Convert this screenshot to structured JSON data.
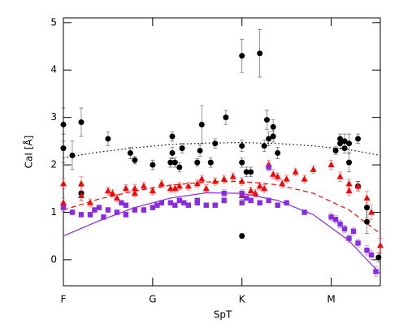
{
  "chart_data": {
    "type": "scatter",
    "xlabel": "SpT",
    "ylabel": "CaI [Å]",
    "xlim": [
      0,
      35.5
    ],
    "ylim": [
      -0.55,
      5.1
    ],
    "xticks": [
      {
        "value": 0,
        "label": "F"
      },
      {
        "value": 10,
        "label": "G"
      },
      {
        "value": 20,
        "label": "K"
      },
      {
        "value": 30,
        "label": "M"
      }
    ],
    "yticks": [
      0,
      1,
      2,
      3,
      4,
      5
    ],
    "series": [
      {
        "marker": "circle",
        "color": "#000000",
        "x": [
          0,
          0,
          1,
          2,
          2,
          5,
          7.5,
          8,
          10,
          12,
          12.2,
          12.2,
          12.5,
          13,
          13.3,
          15,
          15.3,
          15.5,
          16.5,
          17,
          18.2,
          20,
          20,
          20,
          20,
          20.5,
          21,
          22,
          22.5,
          22.8,
          23,
          23.5,
          23.5,
          24,
          30.5,
          31,
          31,
          31.5,
          31.5,
          32,
          32,
          33,
          33,
          34,
          34,
          35.3
        ],
        "values": [
          2.85,
          2.35,
          2.2,
          2.9,
          1.4,
          2.55,
          2.25,
          2.1,
          2.0,
          2.05,
          2.6,
          2.25,
          2.05,
          1.95,
          2.35,
          2.05,
          2.3,
          2.85,
          2.05,
          2.45,
          3.0,
          4.3,
          2.4,
          2.05,
          0.5,
          1.85,
          1.85,
          4.35,
          2.4,
          2.95,
          2.55,
          2.8,
          2.6,
          2.25,
          2.3,
          2.55,
          2.45,
          2.5,
          2.35,
          2.05,
          2.45,
          2.55,
          1.55,
          0.8,
          1.1,
          0.05
        ],
        "errors": [
          0.35,
          0.3,
          0.3,
          0.3,
          0.15,
          0.15,
          0.12,
          0.08,
          0.1,
          0.1,
          0.1,
          0.12,
          0.1,
          0.1,
          0.1,
          0.08,
          0.12,
          0.4,
          0.1,
          0.1,
          0.15,
          0.35,
          0.12,
          0.1,
          0.05,
          0.1,
          0.1,
          0.5,
          0.12,
          0.2,
          0.15,
          0.15,
          0.12,
          0.12,
          0.08,
          0.1,
          0.1,
          0.15,
          0.1,
          0.2,
          0.2,
          0.1,
          0.1,
          0.25,
          0.2,
          0.1
        ]
      },
      {
        "marker": "triangle",
        "color": "#ff0000",
        "x": [
          0,
          0,
          2,
          2,
          3,
          5,
          5.5,
          6,
          7,
          8,
          8,
          9,
          10,
          11,
          12,
          12.5,
          13,
          14,
          15,
          15.5,
          16,
          17,
          18,
          19,
          20,
          20,
          21,
          21.5,
          22,
          22.5,
          23,
          23.5,
          24,
          24.5,
          25,
          26,
          27,
          28,
          30,
          31,
          32,
          32,
          33,
          34,
          34.5,
          35.5
        ],
        "values": [
          1.6,
          1.2,
          1.6,
          1.35,
          1.2,
          1.45,
          1.4,
          1.3,
          1.5,
          1.4,
          1.5,
          1.55,
          1.45,
          1.6,
          1.5,
          1.5,
          1.55,
          1.55,
          1.6,
          1.7,
          1.5,
          1.65,
          1.7,
          1.75,
          1.65,
          1.35,
          1.45,
          1.4,
          1.55,
          1.5,
          2.0,
          1.8,
          1.75,
          1.6,
          1.7,
          1.85,
          1.7,
          1.9,
          2.0,
          1.75,
          1.6,
          1.45,
          1.55,
          1.3,
          1.0,
          0.3
        ],
        "errors": [
          0.1,
          0.1,
          0.15,
          0.1,
          0.08,
          0.08,
          0.08,
          0.08,
          0.08,
          0.08,
          0.08,
          0.08,
          0.08,
          0.08,
          0.08,
          0.08,
          0.08,
          0.08,
          0.08,
          0.08,
          0.08,
          0.08,
          0.08,
          0.08,
          0.08,
          0.08,
          0.08,
          0.08,
          0.08,
          0.08,
          0.1,
          0.1,
          0.08,
          0.08,
          0.08,
          0.08,
          0.08,
          0.08,
          0.1,
          0.1,
          0.1,
          0.1,
          0.1,
          0.15,
          0.15,
          0.15
        ]
      },
      {
        "marker": "square",
        "color": "#8a2be2",
        "x": [
          0,
          1,
          2,
          3,
          3.5,
          4,
          4.5,
          5,
          6,
          6.5,
          7,
          7,
          8,
          9,
          10,
          10.5,
          11,
          12,
          12.5,
          13,
          13.5,
          14,
          15,
          15,
          16,
          17,
          18,
          18,
          20,
          20,
          20.5,
          21,
          22,
          23,
          23,
          24,
          25,
          27,
          30,
          30.5,
          31,
          31.5,
          32,
          32.5,
          33,
          34,
          34.5,
          35
        ],
        "values": [
          1.1,
          1.0,
          0.95,
          0.95,
          1.05,
          1.1,
          0.9,
          1.05,
          1.0,
          1.2,
          1.15,
          0.95,
          1.05,
          1.05,
          1.1,
          1.15,
          1.2,
          1.2,
          1.15,
          1.25,
          1.2,
          1.15,
          1.2,
          1.25,
          1.15,
          1.15,
          1.4,
          1.25,
          1.4,
          1.2,
          1.3,
          1.25,
          1.2,
          1.25,
          1.95,
          1.15,
          1.2,
          1.0,
          0.9,
          0.85,
          0.75,
          0.65,
          0.45,
          0.6,
          0.35,
          0.2,
          0.1,
          -0.25
        ],
        "errors": [
          0.08,
          0.05,
          0.05,
          0.05,
          0.05,
          0.05,
          0.05,
          0.05,
          0.05,
          0.05,
          0.05,
          0.05,
          0.05,
          0.05,
          0.05,
          0.05,
          0.05,
          0.05,
          0.05,
          0.05,
          0.05,
          0.05,
          0.05,
          0.05,
          0.05,
          0.05,
          0.08,
          0.05,
          0.08,
          0.05,
          0.05,
          0.05,
          0.05,
          0.05,
          0.08,
          0.05,
          0.05,
          0.05,
          0.08,
          0.08,
          0.08,
          0.08,
          0.08,
          0.08,
          0.08,
          0.1,
          0.1,
          0.1
        ]
      },
      {
        "marker": "line",
        "style": "dotted",
        "color": "#000000",
        "x": [
          0,
          4,
          8,
          12,
          16,
          20,
          24,
          28,
          32,
          35.5
        ],
        "values": [
          2.15,
          2.27,
          2.36,
          2.43,
          2.46,
          2.47,
          2.45,
          2.4,
          2.32,
          2.2
        ]
      },
      {
        "marker": "line",
        "style": "dashed",
        "color": "#ff0000",
        "x": [
          0,
          4,
          8,
          12,
          16,
          20,
          24,
          28,
          32,
          35.5
        ],
        "values": [
          1.05,
          1.28,
          1.45,
          1.57,
          1.64,
          1.65,
          1.58,
          1.4,
          1.05,
          0.55
        ]
      },
      {
        "marker": "line",
        "style": "solid",
        "color": "#8a2be2",
        "x": [
          0,
          4,
          8,
          12,
          16,
          20,
          24,
          28,
          32,
          35.5
        ],
        "values": [
          0.5,
          0.82,
          1.1,
          1.3,
          1.41,
          1.4,
          1.25,
          0.95,
          0.4,
          -0.3
        ]
      }
    ]
  }
}
